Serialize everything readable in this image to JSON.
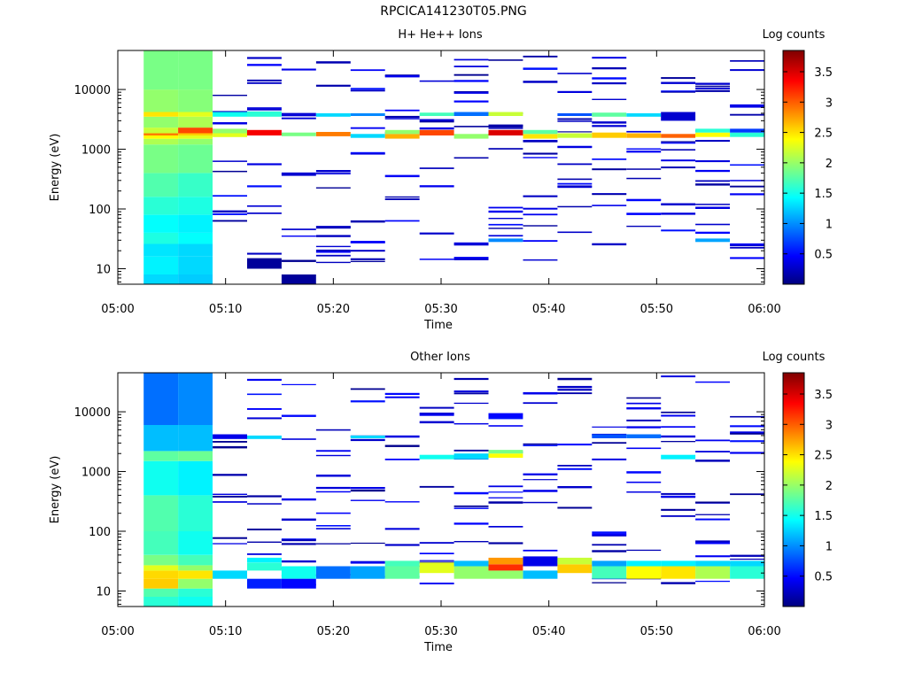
{
  "figure_title": "RPCICA141230T05.PNG",
  "chart_data": [
    {
      "type": "heatmap",
      "title": "H+ He++ Ions",
      "xlabel": "Time",
      "ylabel": "Energy (eV)",
      "x_ticks": [
        "05:00",
        "05:10",
        "05:20",
        "05:30",
        "05:40",
        "05:50",
        "06:00"
      ],
      "x_range_minutes": [
        0,
        60
      ],
      "y_scale": "log",
      "y_range": [
        5.5,
        45000
      ],
      "y_ticks": [
        "10",
        "100",
        "1000",
        "10000"
      ],
      "colorbar": {
        "label": "Log counts",
        "range": [
          0,
          3.85
        ],
        "ticks": [
          "0.5",
          "1",
          "1.5",
          "2",
          "2.5",
          "3",
          "3.5"
        ]
      },
      "grid": false,
      "column_start_minutes": [
        2.4,
        5.6,
        8.8,
        12.0,
        15.2,
        18.4,
        21.6,
        24.8,
        28.0,
        31.2,
        34.4,
        37.6,
        40.8,
        44.0,
        47.2,
        50.4,
        53.6,
        56.8
      ],
      "column_width_minutes": 3.2,
      "dense_columns": [
        {
          "col": 0,
          "bands": [
            [
              5.5,
              8,
              1.3
            ],
            [
              8,
              16,
              1.4
            ],
            [
              16,
              26,
              1.35
            ],
            [
              26,
              40,
              1.55
            ],
            [
              40,
              80,
              1.45
            ],
            [
              80,
              160,
              1.6
            ],
            [
              160,
              400,
              1.75
            ],
            [
              400,
              1200,
              1.9
            ],
            [
              1200,
              1500,
              2.1
            ],
            [
              1500,
              1700,
              2.4
            ],
            [
              1700,
              1850,
              2.9
            ],
            [
              1850,
              2300,
              2.2
            ],
            [
              2300,
              3500,
              2.0
            ],
            [
              3500,
              4200,
              2.5
            ],
            [
              4200,
              10000,
              2.0
            ],
            [
              10000,
              45000,
              1.9
            ]
          ]
        },
        {
          "col": 1,
          "bands": [
            [
              5.5,
              8,
              1.25
            ],
            [
              8,
              16,
              1.3
            ],
            [
              16,
              26,
              1.3
            ],
            [
              26,
              40,
              1.45
            ],
            [
              40,
              80,
              1.4
            ],
            [
              80,
              160,
              1.55
            ],
            [
              160,
              400,
              1.65
            ],
            [
              400,
              1200,
              1.85
            ],
            [
              1200,
              1500,
              2.0
            ],
            [
              1500,
              1700,
              2.3
            ],
            [
              1700,
              1850,
              2.6
            ],
            [
              1850,
              2300,
              3.1
            ],
            [
              2300,
              3500,
              2.1
            ],
            [
              3500,
              4200,
              2.3
            ],
            [
              4200,
              10000,
              1.95
            ],
            [
              10000,
              45000,
              1.9
            ]
          ]
        }
      ],
      "sparse_cells": [
        {
          "col": 2,
          "e": [
            1600,
            1850
          ],
          "v": 2.3
        },
        {
          "col": 2,
          "e": [
            1850,
            2200
          ],
          "v": 2.0
        },
        {
          "col": 2,
          "e": [
            3500,
            4200
          ],
          "v": 1.5
        },
        {
          "col": 3,
          "e": [
            1700,
            2100
          ],
          "v": 3.4
        },
        {
          "col": 3,
          "e": [
            3500,
            4300
          ],
          "v": 1.6
        },
        {
          "col": 3,
          "e": [
            10,
            15
          ],
          "v": 0.1
        },
        {
          "col": 4,
          "e": [
            1650,
            1900
          ],
          "v": 1.9
        },
        {
          "col": 4,
          "e": [
            5.5,
            8
          ],
          "v": 0.1
        },
        {
          "col": 5,
          "e": [
            1650,
            1950
          ],
          "v": 2.9
        },
        {
          "col": 5,
          "e": [
            3500,
            4000
          ],
          "v": 1.3
        },
        {
          "col": 6,
          "e": [
            1550,
            1800
          ],
          "v": 1.3
        },
        {
          "col": 6,
          "e": [
            3600,
            4000
          ],
          "v": 1.0
        },
        {
          "col": 7,
          "e": [
            1500,
            1800
          ],
          "v": 2.7
        },
        {
          "col": 7,
          "e": [
            1800,
            2100
          ],
          "v": 2.0
        },
        {
          "col": 8,
          "e": [
            1700,
            2100
          ],
          "v": 3.1
        },
        {
          "col": 8,
          "e": [
            3600,
            4100
          ],
          "v": 1.7
        },
        {
          "col": 9,
          "e": [
            1500,
            1800
          ],
          "v": 2.0
        },
        {
          "col": 9,
          "e": [
            3600,
            4200
          ],
          "v": 0.9
        },
        {
          "col": 10,
          "e": [
            1700,
            2100
          ],
          "v": 3.5
        },
        {
          "col": 10,
          "e": [
            3600,
            4200
          ],
          "v": 2.2
        },
        {
          "col": 10,
          "e": [
            28,
            32
          ],
          "v": 1.0
        },
        {
          "col": 11,
          "e": [
            1500,
            1800
          ],
          "v": 2.5
        },
        {
          "col": 11,
          "e": [
            1800,
            2100
          ],
          "v": 1.8
        },
        {
          "col": 12,
          "e": [
            1550,
            1850
          ],
          "v": 2.2
        },
        {
          "col": 12,
          "e": [
            3600,
            4000
          ],
          "v": 0.8
        },
        {
          "col": 13,
          "e": [
            1550,
            1900
          ],
          "v": 2.6
        },
        {
          "col": 13,
          "e": [
            3500,
            4100
          ],
          "v": 1.8
        },
        {
          "col": 14,
          "e": [
            1550,
            1850
          ],
          "v": 2.7
        },
        {
          "col": 14,
          "e": [
            3500,
            4000
          ],
          "v": 1.3
        },
        {
          "col": 15,
          "e": [
            1550,
            1800
          ],
          "v": 3.0
        },
        {
          "col": 15,
          "e": [
            3000,
            4200
          ],
          "v": 0.3
        },
        {
          "col": 16,
          "e": [
            1600,
            1900
          ],
          "v": 2.4
        },
        {
          "col": 16,
          "e": [
            1900,
            2200
          ],
          "v": 1.6
        },
        {
          "col": 16,
          "e": [
            28,
            32
          ],
          "v": 1.1
        },
        {
          "col": 17,
          "e": [
            1600,
            1900
          ],
          "v": 1.6
        },
        {
          "col": 17,
          "e": [
            1900,
            2200
          ],
          "v": 0.7
        }
      ]
    },
    {
      "type": "heatmap",
      "title": "Other Ions",
      "xlabel": "Time",
      "ylabel": "Energy (eV)",
      "x_ticks": [
        "05:00",
        "05:10",
        "05:20",
        "05:30",
        "05:40",
        "05:50",
        "06:00"
      ],
      "x_range_minutes": [
        0,
        60
      ],
      "y_scale": "log",
      "y_range": [
        5.5,
        45000
      ],
      "y_ticks": [
        "10",
        "100",
        "1000",
        "10000"
      ],
      "colorbar": {
        "label": "Log counts",
        "range": [
          0,
          3.85
        ],
        "ticks": [
          "0.5",
          "1",
          "1.5",
          "2",
          "2.5",
          "3",
          "3.5"
        ]
      },
      "grid": false,
      "column_start_minutes": [
        2.4,
        5.6,
        8.8,
        12.0,
        15.2,
        18.4,
        21.6,
        24.8,
        28.0,
        31.2,
        34.4,
        37.6,
        40.8,
        44.0,
        47.2,
        50.4,
        53.6,
        56.8
      ],
      "column_width_minutes": 3.2,
      "dense_columns": [
        {
          "col": 0,
          "bands": [
            [
              5.5,
              8,
              1.6
            ],
            [
              8,
              11,
              1.75
            ],
            [
              11,
              16,
              2.6
            ],
            [
              16,
              22,
              2.55
            ],
            [
              22,
              27,
              2.3
            ],
            [
              27,
              40,
              1.9
            ],
            [
              40,
              100,
              1.7
            ],
            [
              100,
              400,
              1.75
            ],
            [
              400,
              1500,
              1.5
            ],
            [
              1500,
              2200,
              1.8
            ],
            [
              2200,
              6000,
              1.2
            ],
            [
              6000,
              45000,
              0.9
            ]
          ]
        },
        {
          "col": 1,
          "bands": [
            [
              5.5,
              8,
              1.5
            ],
            [
              8,
              11,
              1.6
            ],
            [
              11,
              16,
              2.0
            ],
            [
              16,
              22,
              2.5
            ],
            [
              22,
              27,
              2.0
            ],
            [
              27,
              40,
              1.7
            ],
            [
              40,
              100,
              1.5
            ],
            [
              100,
              400,
              1.6
            ],
            [
              400,
              1500,
              1.4
            ],
            [
              1500,
              2200,
              1.85
            ],
            [
              2200,
              6000,
              1.2
            ],
            [
              6000,
              45000,
              1.0
            ]
          ]
        }
      ],
      "sparse_cells": [
        {
          "col": 2,
          "e": [
            16,
            22
          ],
          "v": 1.3
        },
        {
          "col": 2,
          "e": [
            3500,
            4200
          ],
          "v": 0.4
        },
        {
          "col": 3,
          "e": [
            22,
            30
          ],
          "v": 1.6
        },
        {
          "col": 3,
          "e": [
            30,
            36
          ],
          "v": 1.4
        },
        {
          "col": 3,
          "e": [
            11,
            16
          ],
          "v": 0.6
        },
        {
          "col": 3,
          "e": [
            3500,
            4000
          ],
          "v": 1.3
        },
        {
          "col": 4,
          "e": [
            16,
            26
          ],
          "v": 1.5
        },
        {
          "col": 4,
          "e": [
            11,
            16
          ],
          "v": 0.5
        },
        {
          "col": 5,
          "e": [
            16,
            26
          ],
          "v": 0.9
        },
        {
          "col": 6,
          "e": [
            16,
            26
          ],
          "v": 1.1
        },
        {
          "col": 6,
          "e": [
            3600,
            4000
          ],
          "v": 1.3
        },
        {
          "col": 7,
          "e": [
            16,
            26
          ],
          "v": 1.8
        },
        {
          "col": 7,
          "e": [
            26,
            32
          ],
          "v": 1.7
        },
        {
          "col": 8,
          "e": [
            20,
            30
          ],
          "v": 2.3
        },
        {
          "col": 8,
          "e": [
            1600,
            1900
          ],
          "v": 1.5
        },
        {
          "col": 9,
          "e": [
            16,
            26
          ],
          "v": 2.0
        },
        {
          "col": 9,
          "e": [
            26,
            32
          ],
          "v": 1.2
        },
        {
          "col": 9,
          "e": [
            1600,
            2000
          ],
          "v": 1.3
        },
        {
          "col": 10,
          "e": [
            16,
            22
          ],
          "v": 2.0
        },
        {
          "col": 10,
          "e": [
            22,
            28
          ],
          "v": 3.2
        },
        {
          "col": 10,
          "e": [
            28,
            36
          ],
          "v": 2.8
        },
        {
          "col": 10,
          "e": [
            1700,
            2000
          ],
          "v": 2.4
        },
        {
          "col": 10,
          "e": [
            2000,
            2300
          ],
          "v": 1.9
        },
        {
          "col": 10,
          "e": [
            8000,
            9500
          ],
          "v": 0.5
        },
        {
          "col": 11,
          "e": [
            16,
            22
          ],
          "v": 1.2
        },
        {
          "col": 11,
          "e": [
            26,
            38
          ],
          "v": 0.4
        },
        {
          "col": 12,
          "e": [
            20,
            28
          ],
          "v": 2.6
        },
        {
          "col": 12,
          "e": [
            28,
            36
          ],
          "v": 2.2
        },
        {
          "col": 13,
          "e": [
            16,
            26
          ],
          "v": 1.7
        },
        {
          "col": 13,
          "e": [
            26,
            32
          ],
          "v": 1.1
        },
        {
          "col": 13,
          "e": [
            3600,
            4200
          ],
          "v": 0.8
        },
        {
          "col": 14,
          "e": [
            16,
            26
          ],
          "v": 2.4
        },
        {
          "col": 14,
          "e": [
            26,
            32
          ],
          "v": 1.4
        },
        {
          "col": 14,
          "e": [
            3600,
            4200
          ],
          "v": 0.9
        },
        {
          "col": 15,
          "e": [
            16,
            26
          ],
          "v": 2.5
        },
        {
          "col": 15,
          "e": [
            26,
            32
          ],
          "v": 1.4
        },
        {
          "col": 15,
          "e": [
            1600,
            1900
          ],
          "v": 1.4
        },
        {
          "col": 16,
          "e": [
            16,
            26
          ],
          "v": 2.1
        },
        {
          "col": 16,
          "e": [
            26,
            32
          ],
          "v": 1.3
        },
        {
          "col": 17,
          "e": [
            16,
            26
          ],
          "v": 1.6
        },
        {
          "col": 17,
          "e": [
            26,
            32
          ],
          "v": 1.3
        }
      ]
    }
  ]
}
